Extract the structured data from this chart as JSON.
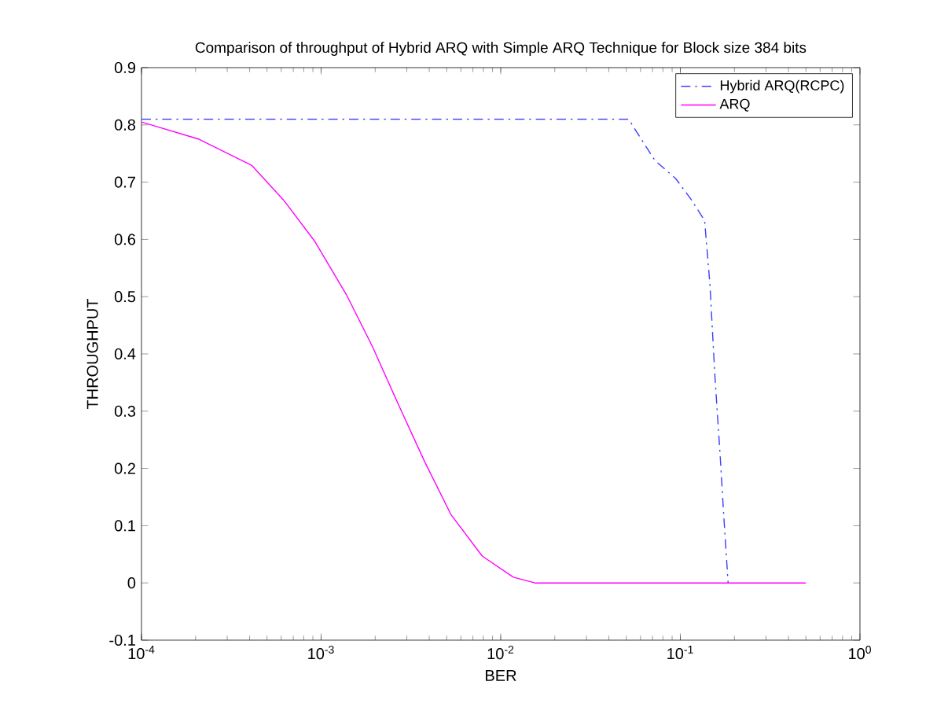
{
  "chart_data": {
    "type": "line",
    "title": "Comparison of throughput of Hybrid ARQ with Simple ARQ Technique for Block size 384 bits",
    "xlabel": "BER",
    "ylabel": "THROUGHPUT",
    "log": "x",
    "xlim": [
      0.0001,
      1
    ],
    "ylim": [
      -0.1,
      0.9
    ],
    "xticks": [
      {
        "value": 0.0001,
        "label": "10$^{-4}$"
      },
      {
        "value": 0.001,
        "label": "10$^{-3}$"
      },
      {
        "value": 0.01,
        "label": "10$^{-2}$"
      },
      {
        "value": 0.1,
        "label": "10$^{-1}$"
      },
      {
        "value": 1,
        "label": "10$^{0}$"
      }
    ],
    "yticks": [
      -0.1,
      0,
      0.1,
      0.2,
      0.3,
      0.4,
      0.5,
      0.6,
      0.7,
      0.8,
      0.9
    ],
    "grid": false,
    "legend": "top right",
    "marker": "none",
    "series": [
      {
        "name": "Hybrid ARQ(RCPC)",
        "color": "#3c3cff",
        "line_style": "dashdot",
        "x": [
          0.0001,
          0.0515,
          0.0721,
          0.0944,
          0.1153,
          0.1365,
          0.146,
          0.156,
          0.1667,
          0.175,
          0.1845
        ],
        "values": [
          0.81,
          0.81,
          0.738,
          0.706,
          0.669,
          0.633,
          0.523,
          0.358,
          0.221,
          0.111,
          0
        ]
      },
      {
        "name": "ARQ",
        "color": "#ff00ff",
        "line_style": "solid",
        "x": [
          0.0001,
          0.000209,
          0.000412,
          0.000617,
          0.000925,
          0.00138,
          0.00193,
          0.00269,
          0.00377,
          0.00527,
          0.00789,
          0.01175,
          0.0155,
          0.5
        ],
        "values": [
          0.805,
          0.775,
          0.729,
          0.669,
          0.596,
          0.504,
          0.413,
          0.312,
          0.212,
          0.12,
          0.047,
          0.01,
          0,
          0
        ]
      }
    ]
  }
}
